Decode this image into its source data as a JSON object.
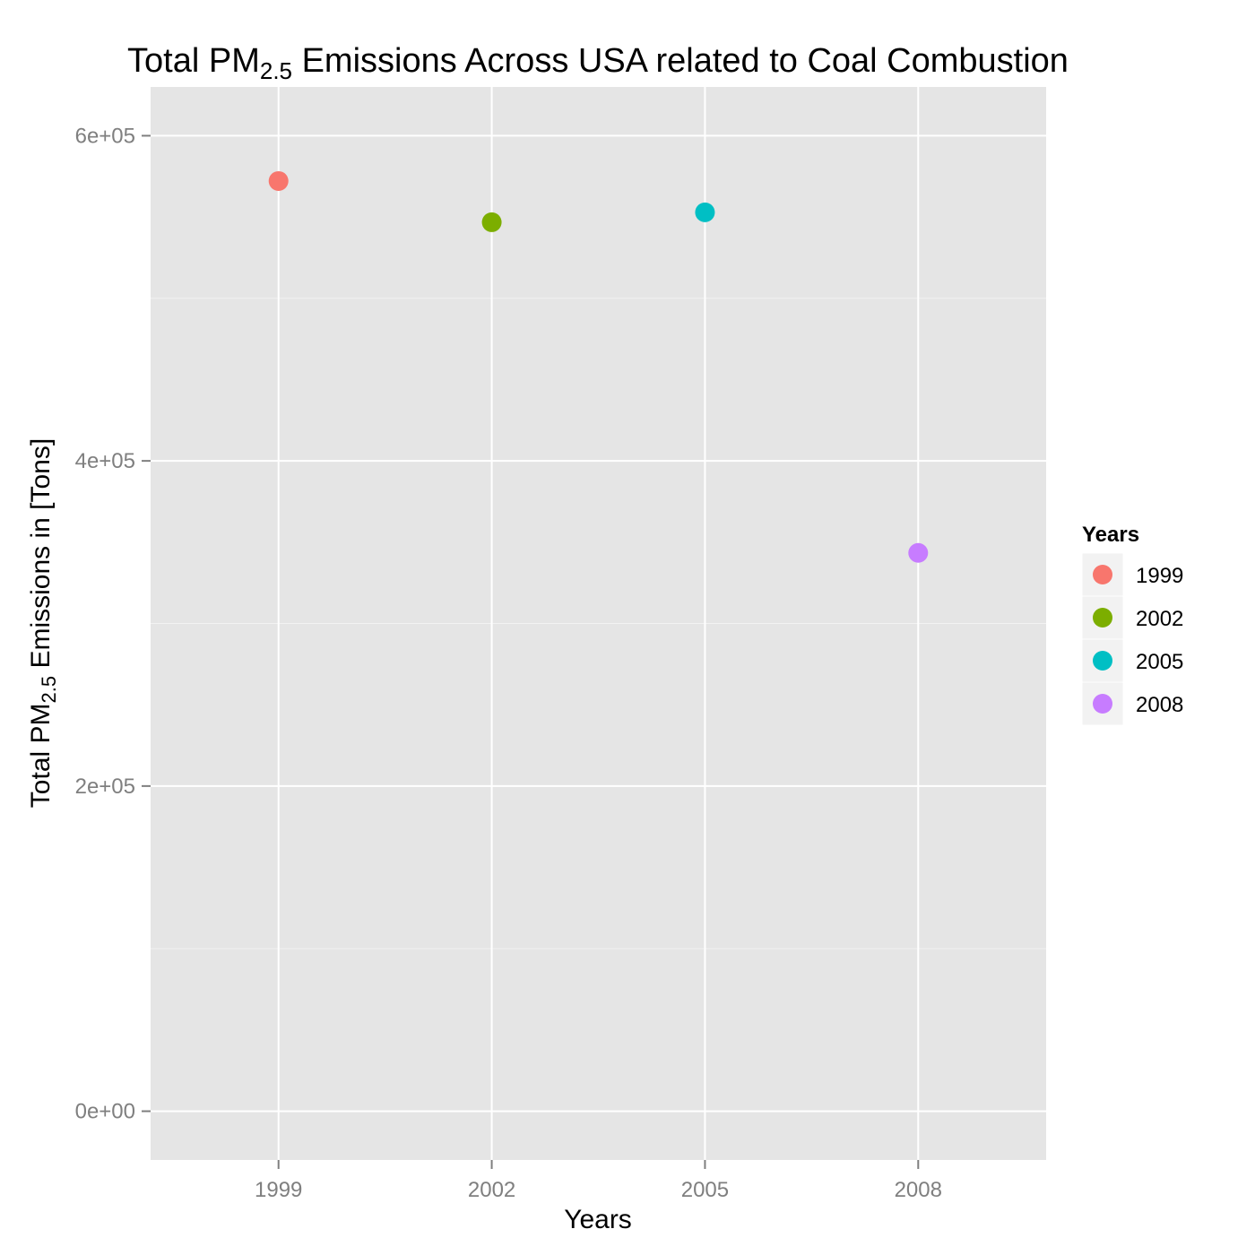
{
  "chart_data": {
    "type": "scatter",
    "title": {
      "prefix": "Total PM",
      "subscript": "2.5",
      "suffix": " Emissions Across USA related to Coal Combustion"
    },
    "xlabel": "Years",
    "ylabel": {
      "prefix": "Total PM",
      "subscript": "2.5",
      "suffix": " Emissions in [Tons]"
    },
    "x": [
      "1999",
      "2002",
      "2005",
      "2008"
    ],
    "y": [
      572126,
      546789,
      552881,
      343432
    ],
    "colors": [
      "#F8766D",
      "#7CAE00",
      "#00BFC4",
      "#C77CFF"
    ],
    "ylim": [
      -30000,
      630000
    ],
    "y_ticks": [
      0,
      200000,
      400000,
      600000
    ],
    "y_tick_labels": [
      "0e+00",
      "2e+05",
      "4e+05",
      "6e+05"
    ],
    "grid": true,
    "legend": {
      "title": "Years",
      "placement": "right",
      "entries": [
        "1999",
        "2002",
        "2005",
        "2008"
      ]
    }
  }
}
